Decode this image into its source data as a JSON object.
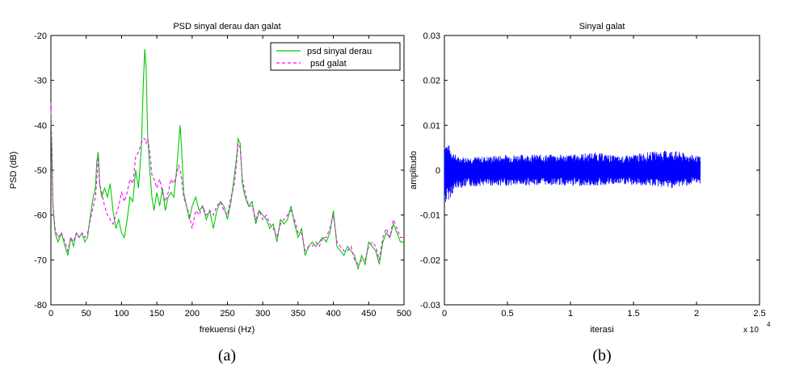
{
  "captions": [
    "(a)",
    "(b)"
  ],
  "chart_data": [
    {
      "type": "line",
      "title": "PSD sinyal derau dan galat",
      "xlabel": "frekuensi (Hz)",
      "ylabel": "PSD (dB)",
      "xlim": [
        0,
        500
      ],
      "ylim": [
        -80,
        -20
      ],
      "xticks": [
        0,
        50,
        100,
        150,
        200,
        250,
        300,
        350,
        400,
        450,
        500
      ],
      "yticks": [
        -80,
        -70,
        -60,
        -50,
        -40,
        -30,
        -20
      ],
      "legend_position": "top-right",
      "grid": false,
      "series": [
        {
          "name": "psd sinyal derau",
          "color": "#00cc00",
          "style": "solid",
          "points": [
            [
              0,
              -37
            ],
            [
              3,
              -58
            ],
            [
              6,
              -64
            ],
            [
              10,
              -66
            ],
            [
              15,
              -64
            ],
            [
              20,
              -67
            ],
            [
              24,
              -69
            ],
            [
              28,
              -65
            ],
            [
              32,
              -67
            ],
            [
              36,
              -64
            ],
            [
              40,
              -65
            ],
            [
              44,
              -64
            ],
            [
              48,
              -66
            ],
            [
              52,
              -65
            ],
            [
              56,
              -60
            ],
            [
              60,
              -56
            ],
            [
              63,
              -54
            ],
            [
              65,
              -48
            ],
            [
              67,
              -46
            ],
            [
              69,
              -53
            ],
            [
              72,
              -56
            ],
            [
              76,
              -54
            ],
            [
              80,
              -56
            ],
            [
              84,
              -53
            ],
            [
              88,
              -59
            ],
            [
              92,
              -63
            ],
            [
              96,
              -61
            ],
            [
              100,
              -64
            ],
            [
              104,
              -65
            ],
            [
              108,
              -61
            ],
            [
              112,
              -56
            ],
            [
              116,
              -57
            ],
            [
              120,
              -50
            ],
            [
              124,
              -54
            ],
            [
              128,
              -45
            ],
            [
              131,
              -30
            ],
            [
              133,
              -23
            ],
            [
              135,
              -28
            ],
            [
              137,
              -42
            ],
            [
              140,
              -50
            ],
            [
              143,
              -56
            ],
            [
              146,
              -59
            ],
            [
              150,
              -55
            ],
            [
              154,
              -58
            ],
            [
              158,
              -54
            ],
            [
              162,
              -59
            ],
            [
              166,
              -56
            ],
            [
              170,
              -55
            ],
            [
              174,
              -56
            ],
            [
              178,
              -50
            ],
            [
              181,
              -44
            ],
            [
              183,
              -40
            ],
            [
              185,
              -45
            ],
            [
              188,
              -55
            ],
            [
              192,
              -58
            ],
            [
              196,
              -61
            ],
            [
              200,
              -58
            ],
            [
              205,
              -56
            ],
            [
              210,
              -59
            ],
            [
              215,
              -58
            ],
            [
              220,
              -61
            ],
            [
              225,
              -59
            ],
            [
              230,
              -63
            ],
            [
              235,
              -59
            ],
            [
              240,
              -57
            ],
            [
              245,
              -58
            ],
            [
              250,
              -61
            ],
            [
              255,
              -57
            ],
            [
              260,
              -51
            ],
            [
              263,
              -47
            ],
            [
              265,
              -43
            ],
            [
              268,
              -44
            ],
            [
              271,
              -53
            ],
            [
              275,
              -56
            ],
            [
              280,
              -58
            ],
            [
              285,
              -57
            ],
            [
              290,
              -62
            ],
            [
              295,
              -59
            ],
            [
              300,
              -60
            ],
            [
              305,
              -61
            ],
            [
              310,
              -63
            ],
            [
              315,
              -62
            ],
            [
              320,
              -66
            ],
            [
              325,
              -61
            ],
            [
              330,
              -62
            ],
            [
              335,
              -61
            ],
            [
              340,
              -58
            ],
            [
              345,
              -62
            ],
            [
              350,
              -65
            ],
            [
              355,
              -63
            ],
            [
              360,
              -69
            ],
            [
              365,
              -67
            ],
            [
              370,
              -66
            ],
            [
              375,
              -67
            ],
            [
              380,
              -66
            ],
            [
              385,
              -65
            ],
            [
              390,
              -66
            ],
            [
              395,
              -64
            ],
            [
              400,
              -59
            ],
            [
              405,
              -67
            ],
            [
              410,
              -68
            ],
            [
              415,
              -69
            ],
            [
              420,
              -67
            ],
            [
              425,
              -68
            ],
            [
              430,
              -69
            ],
            [
              435,
              -72
            ],
            [
              440,
              -69
            ],
            [
              445,
              -71
            ],
            [
              450,
              -66
            ],
            [
              455,
              -67
            ],
            [
              460,
              -68
            ],
            [
              465,
              -71
            ],
            [
              470,
              -66
            ],
            [
              475,
              -64
            ],
            [
              480,
              -65
            ],
            [
              485,
              -62
            ],
            [
              490,
              -64
            ],
            [
              495,
              -66
            ],
            [
              500,
              -66
            ]
          ]
        },
        {
          "name": "psd galat",
          "color": "#ff00ff",
          "style": "dashed",
          "points": [
            [
              0,
              -35
            ],
            [
              3,
              -58
            ],
            [
              6,
              -63
            ],
            [
              10,
              -65
            ],
            [
              15,
              -64
            ],
            [
              20,
              -66
            ],
            [
              24,
              -68
            ],
            [
              28,
              -65
            ],
            [
              32,
              -66
            ],
            [
              36,
              -64
            ],
            [
              40,
              -65
            ],
            [
              44,
              -64
            ],
            [
              48,
              -65
            ],
            [
              52,
              -64
            ],
            [
              56,
              -61
            ],
            [
              60,
              -58
            ],
            [
              63,
              -56
            ],
            [
              65,
              -52
            ],
            [
              67,
              -47
            ],
            [
              69,
              -53
            ],
            [
              72,
              -55
            ],
            [
              76,
              -58
            ],
            [
              80,
              -60
            ],
            [
              84,
              -61
            ],
            [
              88,
              -62
            ],
            [
              92,
              -60
            ],
            [
              96,
              -58
            ],
            [
              100,
              -55
            ],
            [
              104,
              -57
            ],
            [
              108,
              -55
            ],
            [
              112,
              -52
            ],
            [
              116,
              -53
            ],
            [
              120,
              -47
            ],
            [
              124,
              -46
            ],
            [
              128,
              -44
            ],
            [
              131,
              -43
            ],
            [
              133,
              -43
            ],
            [
              135,
              -44
            ],
            [
              137,
              -43
            ],
            [
              140,
              -46
            ],
            [
              143,
              -51
            ],
            [
              146,
              -52
            ],
            [
              150,
              -54
            ],
            [
              154,
              -52
            ],
            [
              158,
              -55
            ],
            [
              162,
              -57
            ],
            [
              166,
              -55
            ],
            [
              170,
              -52
            ],
            [
              174,
              -53
            ],
            [
              178,
              -51
            ],
            [
              181,
              -49
            ],
            [
              183,
              -50
            ],
            [
              185,
              -52
            ],
            [
              188,
              -56
            ],
            [
              192,
              -58
            ],
            [
              196,
              -60
            ],
            [
              200,
              -63
            ],
            [
              205,
              -59
            ],
            [
              210,
              -60
            ],
            [
              215,
              -58
            ],
            [
              220,
              -60
            ],
            [
              225,
              -59
            ],
            [
              230,
              -60
            ],
            [
              235,
              -58
            ],
            [
              240,
              -57
            ],
            [
              245,
              -59
            ],
            [
              250,
              -60
            ],
            [
              255,
              -56
            ],
            [
              260,
              -53
            ],
            [
              263,
              -48
            ],
            [
              265,
              -44
            ],
            [
              268,
              -45
            ],
            [
              271,
              -52
            ],
            [
              275,
              -55
            ],
            [
              280,
              -58
            ],
            [
              285,
              -58
            ],
            [
              290,
              -61
            ],
            [
              295,
              -59
            ],
            [
              300,
              -61
            ],
            [
              305,
              -60
            ],
            [
              310,
              -62
            ],
            [
              315,
              -63
            ],
            [
              320,
              -65
            ],
            [
              325,
              -62
            ],
            [
              330,
              -61
            ],
            [
              335,
              -60
            ],
            [
              340,
              -59
            ],
            [
              345,
              -61
            ],
            [
              350,
              -64
            ],
            [
              355,
              -64
            ],
            [
              360,
              -68
            ],
            [
              365,
              -67
            ],
            [
              370,
              -67
            ],
            [
              375,
              -66
            ],
            [
              380,
              -67
            ],
            [
              385,
              -65
            ],
            [
              390,
              -65
            ],
            [
              395,
              -63
            ],
            [
              400,
              -60
            ],
            [
              405,
              -66
            ],
            [
              410,
              -67
            ],
            [
              415,
              -68
            ],
            [
              420,
              -68
            ],
            [
              425,
              -67
            ],
            [
              430,
              -70
            ],
            [
              435,
              -71
            ],
            [
              440,
              -70
            ],
            [
              445,
              -70
            ],
            [
              450,
              -67
            ],
            [
              455,
              -66
            ],
            [
              460,
              -67
            ],
            [
              465,
              -70
            ],
            [
              470,
              -65
            ],
            [
              475,
              -63
            ],
            [
              480,
              -65
            ],
            [
              485,
              -61
            ],
            [
              490,
              -63
            ],
            [
              495,
              -65
            ],
            [
              500,
              -65
            ]
          ]
        }
      ]
    },
    {
      "type": "line",
      "title": "Sinyal galat",
      "xlabel": "iterasi",
      "ylabel": "amplitudo",
      "xlim": [
        0,
        2.5
      ],
      "ylim": [
        -0.03,
        0.03
      ],
      "xticks": [
        0,
        0.5,
        1,
        1.5,
        2,
        2.5
      ],
      "yticks": [
        -0.03,
        -0.02,
        -0.01,
        0,
        0.01,
        0.02,
        0.03
      ],
      "x_multiplier": "x 10",
      "x_multiplier_exponent": "4",
      "grid": false,
      "series": [
        {
          "color": "#0000ff",
          "style": "solid",
          "description_of_signal": "",
          "x_range": [
            0,
            2.03
          ],
          "envelope": [
            [
              0,
              0.007,
              -0.008
            ],
            [
              0.05,
              0.005,
              -0.006
            ],
            [
              0.1,
              0.003,
              -0.004
            ],
            [
              0.3,
              0.003,
              -0.0035
            ],
            [
              0.5,
              0.0035,
              -0.0035
            ],
            [
              0.8,
              0.0035,
              -0.0033
            ],
            [
              1.0,
              0.0035,
              -0.0035
            ],
            [
              1.2,
              0.004,
              -0.0035
            ],
            [
              1.4,
              0.003,
              -0.0032
            ],
            [
              1.6,
              0.004,
              -0.0035
            ],
            [
              1.8,
              0.0045,
              -0.004
            ],
            [
              2.03,
              0.003,
              -0.003
            ]
          ]
        }
      ]
    }
  ]
}
